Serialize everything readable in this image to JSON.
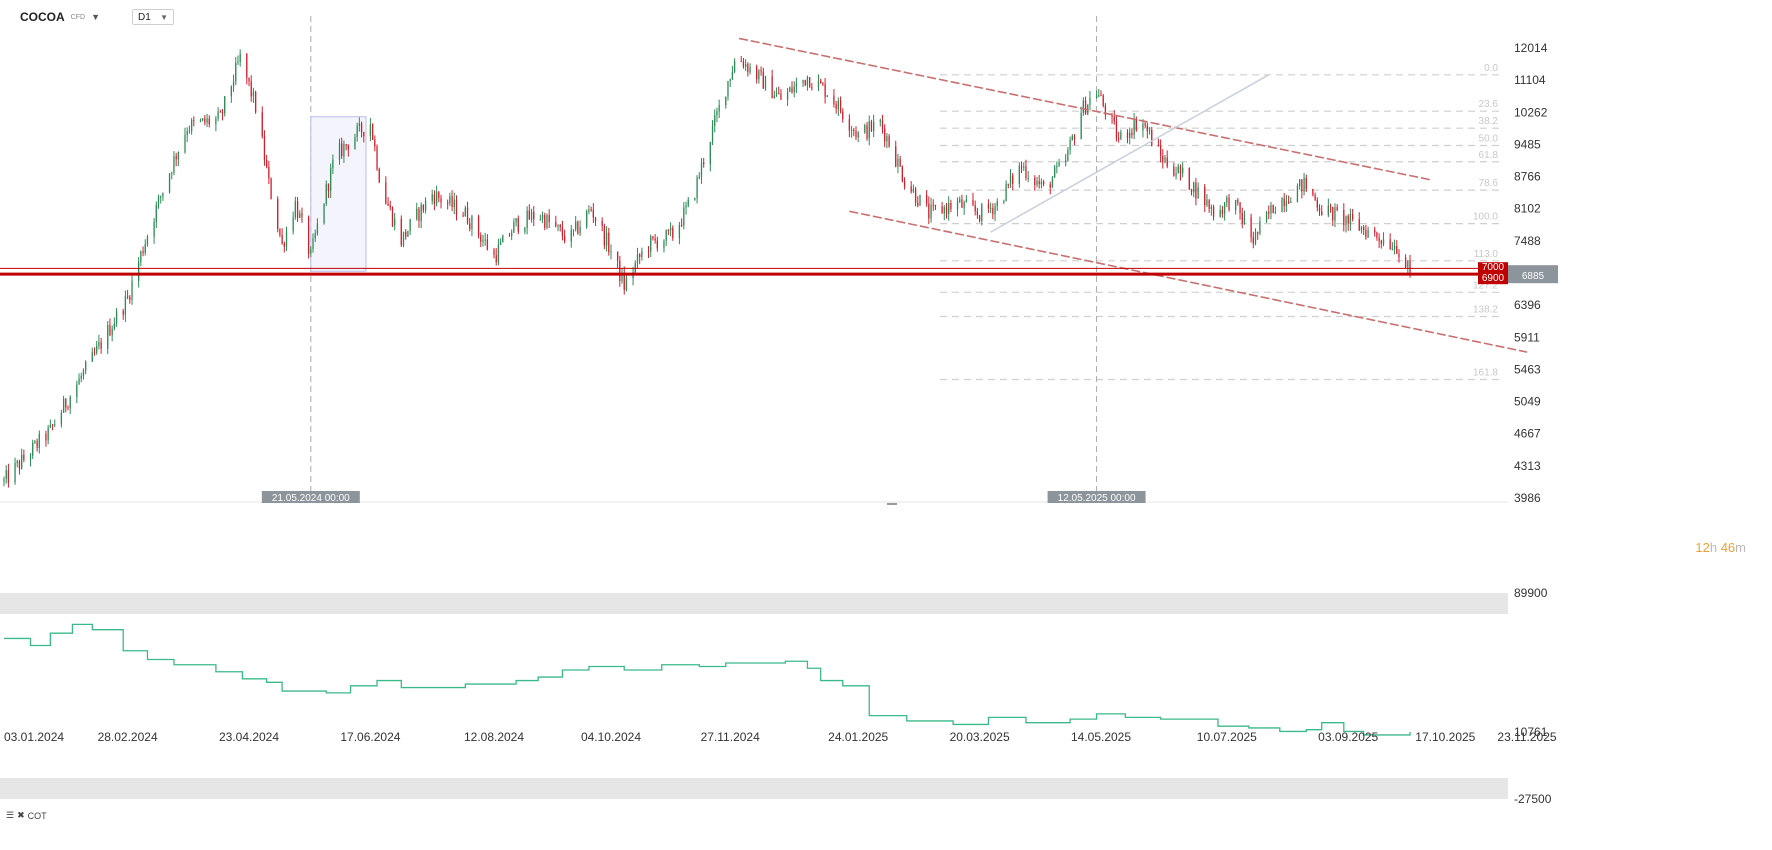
{
  "header": {
    "symbol": "COCOA",
    "symbol_type": "CFD",
    "timeframe": "D1"
  },
  "colors": {
    "bull": "#2e8b57",
    "bear": "#d0202e",
    "level": "#c00000",
    "channel": "#c87070",
    "fib": "#cfcfcf",
    "cot_line": "#3cb98a",
    "price_tag_bg": "#8c959c"
  },
  "chart_data": [
    {
      "type": "candlestick",
      "title": "COCOA CFD, D1",
      "x_tick_labels": [
        "03.01.2024",
        "28.02.2024",
        "23.04.2024",
        "17.06.2024",
        "12.08.2024",
        "04.10.2024",
        "27.11.2024",
        "24.01.2025",
        "20.03.2025",
        "14.05.2025",
        "10.07.2025",
        "03.09.2025",
        "17.10.2025",
        "23.11.2025"
      ],
      "y_tick_labels": [
        "12014",
        "11104",
        "10262",
        "9485",
        "8766",
        "8102",
        "7488",
        "6396",
        "5911",
        "5463",
        "5049",
        "4667",
        "4313",
        "3986"
      ],
      "ylim": [
        3986,
        12650
      ],
      "y_scale": "log",
      "current_price": "6885",
      "key_level": {
        "value": 6900,
        "label": "6900",
        "upper_label": "7000"
      },
      "fibonacci": {
        "levels": [
          {
            "label": "0.0",
            "value": 11250
          },
          {
            "label": "23.6",
            "value": 10290
          },
          {
            "label": "38.2",
            "value": 9870
          },
          {
            "label": "50.0",
            "value": 9460
          },
          {
            "label": "61.8",
            "value": 9090
          },
          {
            "label": "78.6",
            "value": 8480
          },
          {
            "label": "100.0",
            "value": 7810
          },
          {
            "label": "113.0",
            "value": 7130
          },
          {
            "label": "127.2",
            "value": 6600
          },
          {
            "label": "138.2",
            "value": 6220
          },
          {
            "label": "161.8",
            "value": 5330
          }
        ]
      },
      "vertical_markers": [
        {
          "label": "21.05.2024 00:00",
          "date": "2024-05-21"
        },
        {
          "label": "12.05.2025 00:00",
          "date": "2025-05-12"
        }
      ],
      "channel": {
        "upper": [
          {
            "date": "2024-12-01",
            "value": 12300
          },
          {
            "date": "2025-10-10",
            "value": 8700
          }
        ],
        "lower": [
          {
            "date": "2025-01-20",
            "value": 8050
          },
          {
            "date": "2025-11-23",
            "value": 5700
          }
        ]
      },
      "rising_line": [
        {
          "date": "2025-03-25",
          "value": 7650
        },
        {
          "date": "2025-07-29",
          "value": 11250
        }
      ],
      "highlight_box": {
        "start": "2024-05-21",
        "end": "2024-06-15",
        "high": 10150,
        "low": 6950
      },
      "ohlc_path": [
        [
          "2024-01-03",
          4150
        ],
        [
          "2024-01-24",
          4700
        ],
        [
          "2024-02-12",
          5600
        ],
        [
          "2024-02-28",
          6500
        ],
        [
          "2024-03-12",
          8100
        ],
        [
          "2024-03-26",
          9900
        ],
        [
          "2024-04-10",
          10100
        ],
        [
          "2024-04-19",
          11700
        ],
        [
          "2024-04-26",
          10400
        ],
        [
          "2024-05-02",
          8600
        ],
        [
          "2024-05-08",
          7400
        ],
        [
          "2024-05-14",
          8200
        ],
        [
          "2024-05-21",
          7200
        ],
        [
          "2024-06-01",
          9200
        ],
        [
          "2024-06-10",
          9700
        ],
        [
          "2024-06-17",
          10000
        ],
        [
          "2024-06-22",
          8500
        ],
        [
          "2024-07-01",
          7500
        ],
        [
          "2024-07-15",
          8400
        ],
        [
          "2024-07-30",
          8000
        ],
        [
          "2024-08-12",
          7200
        ],
        [
          "2024-08-22",
          7800
        ],
        [
          "2024-09-01",
          8000
        ],
        [
          "2024-09-15",
          7500
        ],
        [
          "2024-09-25",
          8100
        ],
        [
          "2024-10-04",
          7300
        ],
        [
          "2024-10-10",
          6700
        ],
        [
          "2024-10-20",
          7400
        ],
        [
          "2024-11-01",
          7600
        ],
        [
          "2024-11-10",
          8300
        ],
        [
          "2024-11-20",
          10000
        ],
        [
          "2024-11-30",
          11800
        ],
        [
          "2024-12-08",
          11300
        ],
        [
          "2024-12-20",
          10600
        ],
        [
          "2025-01-01",
          11200
        ],
        [
          "2025-01-10",
          10800
        ],
        [
          "2025-01-24",
          9700
        ],
        [
          "2025-02-03",
          10000
        ],
        [
          "2025-02-14",
          8700
        ],
        [
          "2025-02-25",
          8000
        ],
        [
          "2025-03-10",
          8200
        ],
        [
          "2025-03-20",
          8000
        ],
        [
          "2025-03-28",
          8200
        ],
        [
          "2025-04-08",
          9000
        ],
        [
          "2025-04-18",
          8500
        ],
        [
          "2025-04-28",
          9100
        ],
        [
          "2025-05-05",
          10300
        ],
        [
          "2025-05-12",
          10800
        ],
        [
          "2025-05-22",
          9600
        ],
        [
          "2025-06-01",
          10100
        ],
        [
          "2025-06-10",
          9200
        ],
        [
          "2025-06-22",
          8700
        ],
        [
          "2025-07-05",
          8000
        ],
        [
          "2025-07-12",
          8300
        ],
        [
          "2025-07-22",
          7500
        ],
        [
          "2025-08-01",
          8200
        ],
        [
          "2025-08-14",
          8600
        ],
        [
          "2025-08-22",
          8100
        ],
        [
          "2025-09-01",
          7900
        ],
        [
          "2025-09-15",
          7600
        ],
        [
          "2025-09-25",
          7400
        ],
        [
          "2025-10-01",
          6885
        ]
      ]
    },
    {
      "type": "line",
      "name": "COT",
      "y_tick_labels": [
        "89900",
        "10761",
        "-27500"
      ],
      "ylim": [
        -27500,
        89900
      ],
      "series": [
        {
          "name": "COT",
          "points": [
            [
              "2024-01-03",
              64000
            ],
            [
              "2024-01-10",
              64000
            ],
            [
              "2024-01-15",
              60000
            ],
            [
              "2024-01-19",
              60000
            ],
            [
              "2024-01-24",
              67000
            ],
            [
              "2024-02-03",
              72000
            ],
            [
              "2024-02-08",
              72000
            ],
            [
              "2024-02-12",
              69000
            ],
            [
              "2024-02-19",
              69000
            ],
            [
              "2024-02-26",
              57000
            ],
            [
              "2024-03-08",
              52000
            ],
            [
              "2024-03-20",
              49000
            ],
            [
              "2024-04-01",
              49000
            ],
            [
              "2024-04-08",
              45000
            ],
            [
              "2024-04-20",
              41000
            ],
            [
              "2024-05-01",
              39000
            ],
            [
              "2024-05-08",
              34000
            ],
            [
              "2024-05-28",
              33000
            ],
            [
              "2024-06-08",
              37000
            ],
            [
              "2024-06-20",
              40000
            ],
            [
              "2024-07-01",
              36000
            ],
            [
              "2024-07-22",
              36000
            ],
            [
              "2024-07-30",
              38000
            ],
            [
              "2024-08-22",
              40000
            ],
            [
              "2024-09-01",
              42000
            ],
            [
              "2024-09-12",
              46000
            ],
            [
              "2024-09-24",
              48000
            ],
            [
              "2024-10-10",
              46000
            ],
            [
              "2024-10-27",
              49000
            ],
            [
              "2024-11-13",
              48000
            ],
            [
              "2024-11-25",
              50000
            ],
            [
              "2024-12-10",
              50000
            ],
            [
              "2024-12-22",
              51000
            ],
            [
              "2025-01-01",
              47000
            ],
            [
              "2025-01-07",
              40000
            ],
            [
              "2025-01-17",
              37000
            ],
            [
              "2025-01-29",
              20000
            ],
            [
              "2025-02-15",
              17000
            ],
            [
              "2025-03-08",
              15000
            ],
            [
              "2025-03-24",
              19000
            ],
            [
              "2025-04-10",
              16000
            ],
            [
              "2025-04-30",
              18000
            ],
            [
              "2025-05-12",
              21000
            ],
            [
              "2025-05-25",
              19000
            ],
            [
              "2025-06-10",
              18000
            ],
            [
              "2025-06-28",
              18000
            ],
            [
              "2025-07-06",
              14000
            ],
            [
              "2025-07-20",
              13000
            ],
            [
              "2025-08-03",
              11000
            ],
            [
              "2025-08-15",
              12000
            ],
            [
              "2025-08-22",
              16000
            ],
            [
              "2025-09-01",
              11000
            ],
            [
              "2025-09-10",
              9000
            ],
            [
              "2025-09-22",
              9000
            ],
            [
              "2025-10-01",
              10761
            ]
          ]
        }
      ]
    }
  ],
  "indicator": {
    "label": "COT"
  },
  "timer": {
    "hours": "12",
    "h_unit": "h",
    "minutes": "46",
    "m_unit": "m"
  }
}
